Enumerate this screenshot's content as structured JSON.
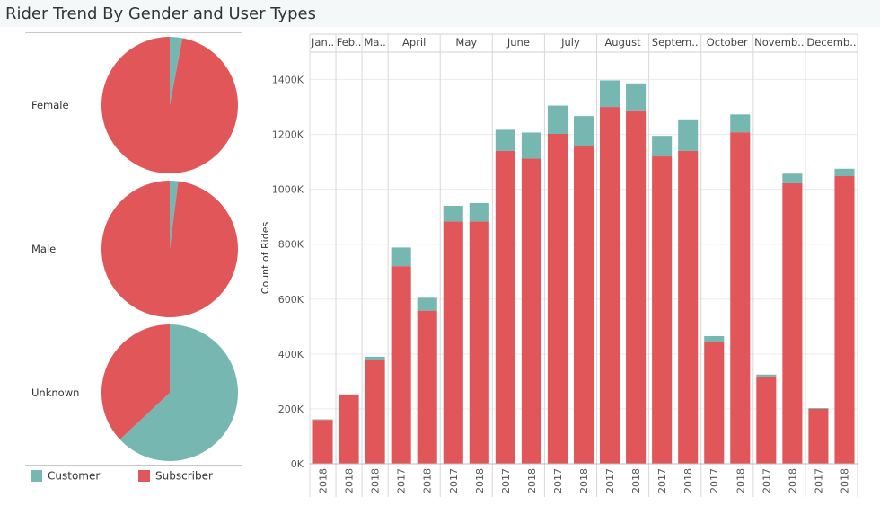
{
  "title": "Rider Trend By Gender and User Types",
  "colors": {
    "customer": "#76b7b2",
    "subscriber": "#e15759"
  },
  "legend": {
    "customer": "Customer",
    "subscriber": "Subscriber"
  },
  "chart_data": [
    {
      "type": "pie",
      "panels": [
        {
          "label": "Female",
          "slices": [
            {
              "name": "Customer",
              "value": 0.03
            },
            {
              "name": "Subscriber",
              "value": 0.97
            }
          ]
        },
        {
          "label": "Male",
          "slices": [
            {
              "name": "Customer",
              "value": 0.02
            },
            {
              "name": "Subscriber",
              "value": 0.98
            }
          ]
        },
        {
          "label": "Unknown",
          "slices": [
            {
              "name": "Customer",
              "value": 0.63
            },
            {
              "name": "Subscriber",
              "value": 0.37
            }
          ]
        }
      ]
    },
    {
      "type": "bar",
      "stacked": true,
      "ylabel": "Count of Rides",
      "ylim": [
        0,
        1500
      ],
      "yticks": [
        "0K",
        "200K",
        "400K",
        "600K",
        "800K",
        "1000K",
        "1200K",
        "1400K"
      ],
      "month_labels": [
        "Jan..",
        "Feb..",
        "Ma..",
        "April",
        "May",
        "June",
        "July",
        "August",
        "Septem..",
        "October",
        "Novemb..",
        "Decemb.."
      ],
      "months": [
        {
          "years": [
            "2018"
          ],
          "subscriber": [
            160
          ],
          "customer": [
            2
          ]
        },
        {
          "years": [
            "2018"
          ],
          "subscriber": [
            250
          ],
          "customer": [
            3
          ]
        },
        {
          "years": [
            "2018"
          ],
          "subscriber": [
            380
          ],
          "customer": [
            10
          ]
        },
        {
          "years": [
            "2017",
            "2018"
          ],
          "subscriber": [
            720,
            558
          ],
          "customer": [
            68,
            47
          ]
        },
        {
          "years": [
            "2017",
            "2018"
          ],
          "subscriber": [
            883,
            883
          ],
          "customer": [
            57,
            67
          ]
        },
        {
          "years": [
            "2017",
            "2018"
          ],
          "subscriber": [
            1140,
            1112
          ],
          "customer": [
            77,
            95
          ]
        },
        {
          "years": [
            "2017",
            "2018"
          ],
          "subscriber": [
            1202,
            1157
          ],
          "customer": [
            103,
            110
          ]
        },
        {
          "years": [
            "2017",
            "2018"
          ],
          "subscriber": [
            1300,
            1288
          ],
          "customer": [
            97,
            98
          ]
        },
        {
          "years": [
            "2017",
            "2018"
          ],
          "subscriber": [
            1120,
            1140
          ],
          "customer": [
            75,
            115
          ]
        },
        {
          "years": [
            "2017",
            "2018"
          ],
          "subscriber": [
            445,
            1208
          ],
          "customer": [
            20,
            65
          ]
        },
        {
          "years": [
            "2017",
            "2018"
          ],
          "subscriber": [
            318,
            1022
          ],
          "customer": [
            7,
            35
          ]
        },
        {
          "years": [
            "2017",
            "2018"
          ],
          "subscriber": [
            200,
            1048
          ],
          "customer": [
            3,
            27
          ]
        }
      ]
    }
  ]
}
